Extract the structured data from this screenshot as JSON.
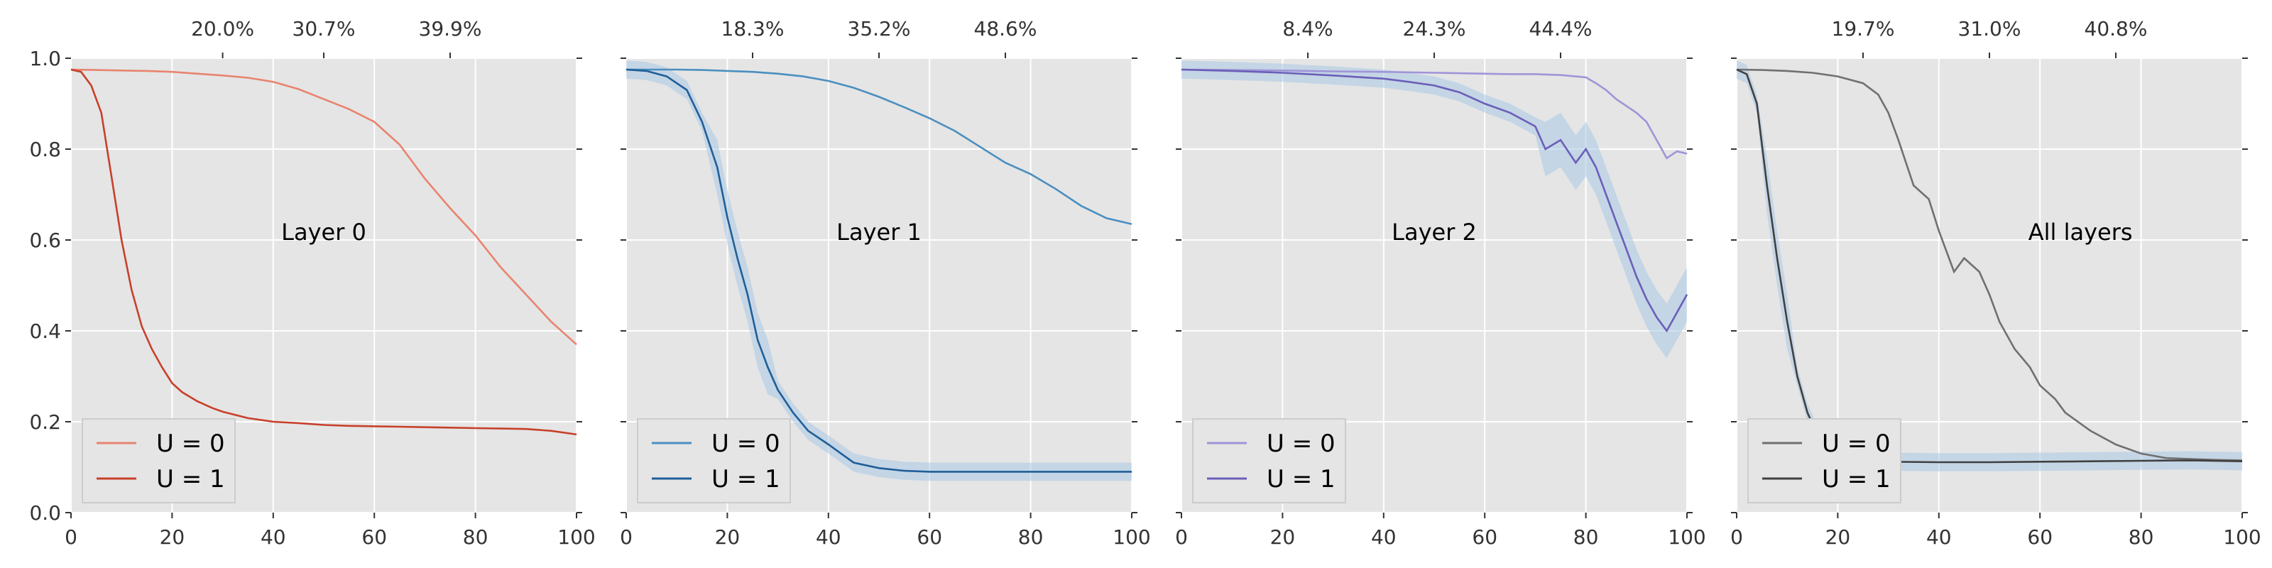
{
  "chart_data": [
    {
      "type": "line",
      "title": "Layer 0",
      "xlim": [
        0,
        100
      ],
      "ylim": [
        0.0,
        1.0
      ],
      "xticks": [
        0,
        20,
        40,
        60,
        80,
        100
      ],
      "yticks": [
        0.0,
        0.2,
        0.4,
        0.6,
        0.8,
        1.0
      ],
      "top_ticks": [
        {
          "x": 30,
          "label": "20.0%"
        },
        {
          "x": 50,
          "label": "30.7%"
        },
        {
          "x": 75,
          "label": "39.9%"
        }
      ],
      "legend_position": "lower-left",
      "grid": true,
      "series": [
        {
          "name": "U = 0",
          "color": "#e8846f",
          "band": false,
          "x": [
            0,
            5,
            10,
            15,
            20,
            25,
            30,
            35,
            40,
            45,
            50,
            55,
            60,
            65,
            70,
            75,
            80,
            85,
            90,
            95,
            100
          ],
          "y": [
            0.975,
            0.974,
            0.973,
            0.972,
            0.97,
            0.966,
            0.962,
            0.957,
            0.948,
            0.932,
            0.91,
            0.888,
            0.86,
            0.81,
            0.735,
            0.67,
            0.61,
            0.54,
            0.48,
            0.42,
            0.37
          ]
        },
        {
          "name": "U = 1",
          "color": "#c8402a",
          "band": false,
          "x": [
            0,
            2,
            4,
            6,
            8,
            10,
            12,
            14,
            16,
            18,
            20,
            22,
            25,
            28,
            30,
            35,
            40,
            45,
            50,
            55,
            60,
            65,
            70,
            75,
            80,
            85,
            90,
            95,
            100
          ],
          "y": [
            0.975,
            0.97,
            0.94,
            0.88,
            0.74,
            0.6,
            0.49,
            0.41,
            0.36,
            0.32,
            0.285,
            0.265,
            0.245,
            0.23,
            0.222,
            0.208,
            0.2,
            0.197,
            0.193,
            0.191,
            0.19,
            0.189,
            0.188,
            0.187,
            0.186,
            0.185,
            0.184,
            0.18,
            0.172
          ]
        }
      ]
    },
    {
      "type": "line",
      "title": "Layer 1",
      "xlim": [
        0,
        100
      ],
      "ylim": [
        0.0,
        1.0
      ],
      "xticks": [
        0,
        20,
        40,
        60,
        80,
        100
      ],
      "yticks": [
        0.0,
        0.2,
        0.4,
        0.6,
        0.8,
        1.0
      ],
      "top_ticks": [
        {
          "x": 25,
          "label": "18.3%"
        },
        {
          "x": 50,
          "label": "35.2%"
        },
        {
          "x": 75,
          "label": "48.6%"
        }
      ],
      "legend_position": "lower-left",
      "grid": true,
      "series": [
        {
          "name": "U = 0",
          "color": "#4a8fc0",
          "band": false,
          "x": [
            0,
            5,
            10,
            15,
            20,
            25,
            30,
            35,
            40,
            45,
            50,
            55,
            60,
            65,
            70,
            75,
            80,
            85,
            90,
            95,
            100
          ],
          "y": [
            0.975,
            0.975,
            0.975,
            0.974,
            0.972,
            0.97,
            0.966,
            0.96,
            0.95,
            0.935,
            0.915,
            0.892,
            0.868,
            0.84,
            0.805,
            0.77,
            0.745,
            0.712,
            0.675,
            0.648,
            0.635
          ]
        },
        {
          "name": "U = 1",
          "color": "#1f5f99",
          "band": true,
          "x": [
            0,
            4,
            8,
            12,
            15,
            18,
            20,
            22,
            24,
            26,
            28,
            30,
            33,
            36,
            40,
            45,
            50,
            55,
            60,
            70,
            80,
            90,
            100
          ],
          "y": [
            0.975,
            0.972,
            0.96,
            0.93,
            0.86,
            0.76,
            0.65,
            0.56,
            0.48,
            0.38,
            0.32,
            0.27,
            0.22,
            0.18,
            0.15,
            0.11,
            0.098,
            0.092,
            0.09,
            0.09,
            0.09,
            0.09,
            0.09
          ]
        }
      ]
    },
    {
      "type": "line",
      "title": "Layer 2",
      "xlim": [
        0,
        100
      ],
      "ylim": [
        0.0,
        1.0
      ],
      "xticks": [
        0,
        20,
        40,
        60,
        80,
        100
      ],
      "yticks": [
        0.0,
        0.2,
        0.4,
        0.6,
        0.8,
        1.0
      ],
      "top_ticks": [
        {
          "x": 25,
          "label": "8.4%"
        },
        {
          "x": 50,
          "label": "24.3%"
        },
        {
          "x": 75,
          "label": "44.4%"
        }
      ],
      "legend_position": "lower-left",
      "grid": true,
      "series": [
        {
          "name": "U = 0",
          "color": "#a094d8",
          "band": false,
          "x": [
            0,
            10,
            20,
            30,
            40,
            50,
            60,
            65,
            70,
            75,
            80,
            82,
            84,
            86,
            88,
            90,
            92,
            94,
            96,
            98,
            100
          ],
          "y": [
            0.975,
            0.974,
            0.973,
            0.971,
            0.97,
            0.968,
            0.966,
            0.965,
            0.965,
            0.963,
            0.958,
            0.945,
            0.93,
            0.91,
            0.895,
            0.88,
            0.86,
            0.82,
            0.78,
            0.795,
            0.79
          ]
        },
        {
          "name": "U = 1",
          "color": "#6a5fb8",
          "band": true,
          "x": [
            0,
            10,
            20,
            30,
            40,
            45,
            50,
            55,
            60,
            65,
            70,
            72,
            75,
            78,
            80,
            82,
            84,
            86,
            88,
            90,
            92,
            94,
            96,
            98,
            100
          ],
          "y": [
            0.975,
            0.972,
            0.968,
            0.962,
            0.955,
            0.948,
            0.94,
            0.925,
            0.9,
            0.88,
            0.85,
            0.8,
            0.82,
            0.77,
            0.8,
            0.76,
            0.7,
            0.64,
            0.58,
            0.52,
            0.47,
            0.43,
            0.4,
            0.44,
            0.48
          ]
        }
      ]
    },
    {
      "type": "line",
      "title": "All layers",
      "xlim": [
        0,
        100
      ],
      "ylim": [
        0.0,
        1.0
      ],
      "xticks": [
        0,
        20,
        40,
        60,
        80,
        100
      ],
      "yticks": [
        0.0,
        0.2,
        0.4,
        0.6,
        0.8,
        1.0
      ],
      "top_ticks": [
        {
          "x": 25,
          "label": "19.7%"
        },
        {
          "x": 50,
          "label": "31.0%"
        },
        {
          "x": 75,
          "label": "40.8%"
        }
      ],
      "legend_position": "lower-left",
      "grid": true,
      "series": [
        {
          "name": "U = 0",
          "color": "#707070",
          "band": false,
          "x": [
            0,
            5,
            10,
            15,
            20,
            25,
            28,
            30,
            32,
            35,
            38,
            40,
            43,
            45,
            48,
            50,
            52,
            55,
            58,
            60,
            63,
            65,
            70,
            75,
            80,
            85,
            90,
            95,
            100
          ],
          "y": [
            0.975,
            0.974,
            0.972,
            0.968,
            0.96,
            0.945,
            0.92,
            0.88,
            0.82,
            0.72,
            0.69,
            0.62,
            0.53,
            0.56,
            0.53,
            0.48,
            0.42,
            0.36,
            0.32,
            0.28,
            0.25,
            0.22,
            0.18,
            0.15,
            0.13,
            0.12,
            0.118,
            0.116,
            0.115
          ]
        },
        {
          "name": "U = 1",
          "color": "#404040",
          "band": true,
          "x": [
            0,
            2,
            4,
            6,
            8,
            10,
            12,
            14,
            16,
            18,
            20,
            22,
            25,
            30,
            40,
            50,
            60,
            70,
            80,
            90,
            100
          ],
          "y": [
            0.975,
            0.965,
            0.9,
            0.72,
            0.56,
            0.42,
            0.3,
            0.22,
            0.17,
            0.14,
            0.125,
            0.118,
            0.113,
            0.112,
            0.111,
            0.111,
            0.112,
            0.113,
            0.114,
            0.115,
            0.113
          ]
        }
      ]
    }
  ]
}
